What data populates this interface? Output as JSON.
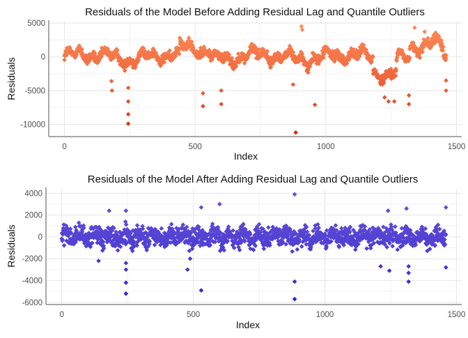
{
  "chart_data": [
    {
      "type": "scatter",
      "title": "Residuals of the Model Before Adding Residual Lag and Quantile Outliers",
      "xlabel": "Index",
      "ylabel": "Residuals",
      "xlim": [
        -60,
        1520
      ],
      "ylim": [
        -11800,
        5200
      ],
      "x_ticks": [
        0,
        500,
        1000,
        1500
      ],
      "y_ticks": [
        5000,
        0,
        -5000,
        -10000
      ],
      "x_tick_labels": [
        "0",
        "500",
        "1000",
        "1500"
      ],
      "y_tick_labels": [
        "5000",
        "0",
        "-5000",
        "-10000"
      ],
      "grid": true,
      "color_low": "#cc1a00",
      "color_high": "#ff8c5a",
      "outliers": [
        {
          "x": 244,
          "y": -9900
        },
        {
          "x": 244,
          "y": -8500
        },
        {
          "x": 244,
          "y": -6600
        },
        {
          "x": 244,
          "y": -4600
        },
        {
          "x": 180,
          "y": -3600
        },
        {
          "x": 182,
          "y": -5000
        },
        {
          "x": 530,
          "y": -7300
        },
        {
          "x": 530,
          "y": -5400
        },
        {
          "x": 600,
          "y": -7000
        },
        {
          "x": 600,
          "y": -5000
        },
        {
          "x": 885,
          "y": -11200
        },
        {
          "x": 958,
          "y": -7100
        },
        {
          "x": 875,
          "y": -4100
        },
        {
          "x": 1240,
          "y": -6600
        },
        {
          "x": 1262,
          "y": -6600
        },
        {
          "x": 1225,
          "y": -6000
        },
        {
          "x": 1318,
          "y": -7000
        },
        {
          "x": 1318,
          "y": -5700
        },
        {
          "x": 1460,
          "y": -5000
        },
        {
          "x": 1460,
          "y": -3500
        },
        {
          "x": 907,
          "y": 4500
        },
        {
          "x": 910,
          "y": 4000
        },
        {
          "x": 1340,
          "y": 4300
        },
        {
          "x": 1378,
          "y": 3700
        }
      ]
    },
    {
      "type": "scatter",
      "title": "Residuals of the Model After Adding Residual Lag and Quantile Outliers",
      "xlabel": "Index",
      "ylabel": "Residuals",
      "xlim": [
        -60,
        1520
      ],
      "ylim": [
        -6200,
        4400
      ],
      "x_ticks": [
        0,
        500,
        1000,
        1500
      ],
      "y_ticks": [
        4000,
        2000,
        0,
        -2000,
        -4000,
        -6000
      ],
      "x_tick_labels": [
        "0",
        "500",
        "1000",
        "1500"
      ],
      "y_tick_labels": [
        "4000",
        "2000",
        "0",
        "-2000",
        "-4000",
        "-6000"
      ],
      "grid": true,
      "color_low": "#1a1acc",
      "color_high": "#6a52d6",
      "outliers": [
        {
          "x": 885,
          "y": 3900
        },
        {
          "x": 885,
          "y": -5700
        },
        {
          "x": 885,
          "y": -4100
        },
        {
          "x": 244,
          "y": -5200
        },
        {
          "x": 244,
          "y": -4200
        },
        {
          "x": 244,
          "y": -3000
        },
        {
          "x": 244,
          "y": -2400
        },
        {
          "x": 244,
          "y": 2400
        },
        {
          "x": 530,
          "y": -4900
        },
        {
          "x": 530,
          "y": 2700
        },
        {
          "x": 600,
          "y": 3000
        },
        {
          "x": 1318,
          "y": -4100
        },
        {
          "x": 1318,
          "y": -3300
        },
        {
          "x": 1318,
          "y": -2700
        },
        {
          "x": 1245,
          "y": -3100
        },
        {
          "x": 1212,
          "y": -2700
        },
        {
          "x": 1460,
          "y": -2800
        },
        {
          "x": 1460,
          "y": 2700
        },
        {
          "x": 180,
          "y": 2400
        },
        {
          "x": 1310,
          "y": 2600
        },
        {
          "x": 1240,
          "y": 2400
        },
        {
          "x": 140,
          "y": -2200
        },
        {
          "x": 488,
          "y": -2000
        },
        {
          "x": 478,
          "y": -3000
        }
      ]
    }
  ]
}
